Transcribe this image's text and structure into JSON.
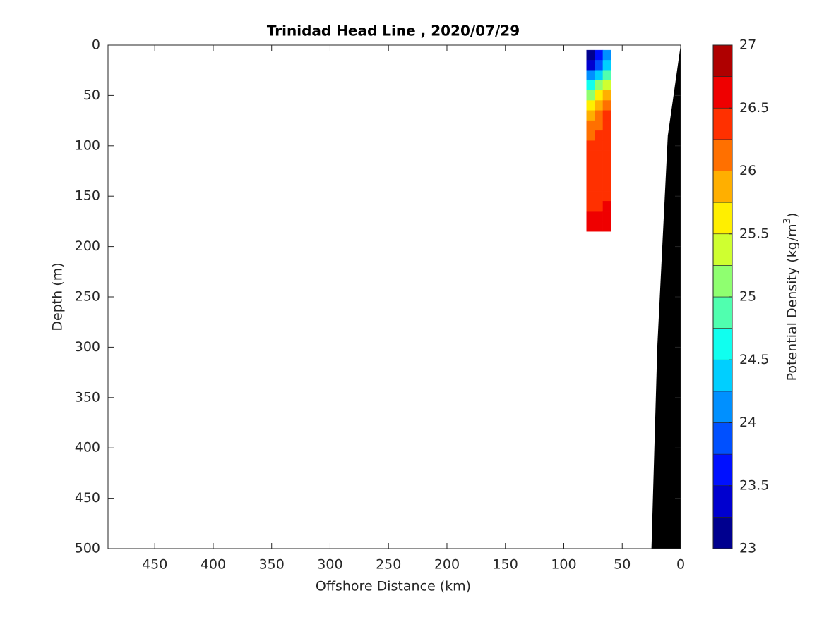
{
  "chart_data": {
    "type": "contour",
    "title": "Trinidad Head Line , 2020/07/29",
    "x_label": "Offshore Distance (km)",
    "y_label": "Depth (m)",
    "colorbar_label": [
      "Potential Density (kg/m",
      "3",
      ")"
    ],
    "xlim": [
      490,
      0
    ],
    "xticks": [
      450,
      400,
      350,
      300,
      250,
      200,
      150,
      100,
      50,
      0
    ],
    "ylim": [
      0,
      500
    ],
    "yticks": [
      0,
      50,
      100,
      150,
      200,
      250,
      300,
      350,
      400,
      450,
      500
    ],
    "clim": [
      23,
      27
    ],
    "cticks": [
      23,
      23.5,
      24,
      24.5,
      25,
      25.5,
      26,
      26.5,
      27
    ],
    "levels": [
      23,
      23.25,
      23.5,
      23.75,
      24,
      24.25,
      24.5,
      24.75,
      25,
      25.25,
      25.5,
      25.75,
      26,
      26.25,
      26.5,
      26.75,
      27
    ],
    "colors": [
      "#00008f",
      "#0000cf",
      "#0010ff",
      "#0050ff",
      "#0090ff",
      "#00cfff",
      "#10ffef",
      "#50ffaf",
      "#8fff70",
      "#cfff30",
      "#ffef00",
      "#ffaf00",
      "#ff7000",
      "#ff3000",
      "#ef0000",
      "#af0000"
    ],
    "x": [
      77,
      70,
      63
    ],
    "depth": [
      10,
      20,
      30,
      40,
      50,
      60,
      70,
      80,
      90,
      100,
      110,
      120,
      130,
      140,
      150,
      160,
      170,
      180
    ],
    "values": [
      [
        23.2,
        23.6,
        24.2
      ],
      [
        23.4,
        23.9,
        24.4
      ],
      [
        24.0,
        24.4,
        24.8
      ],
      [
        24.7,
        25.0,
        25.3
      ],
      [
        25.2,
        25.5,
        25.8
      ],
      [
        25.7,
        25.9,
        26.1
      ],
      [
        25.95,
        26.1,
        26.25
      ],
      [
        26.15,
        26.2,
        26.3
      ],
      [
        26.2,
        26.25,
        26.3
      ],
      [
        26.25,
        26.3,
        26.35
      ],
      [
        26.3,
        26.35,
        26.4
      ],
      [
        26.4,
        26.4,
        26.4
      ],
      [
        26.4,
        26.4,
        26.4
      ],
      [
        26.4,
        26.4,
        26.4
      ],
      [
        26.4,
        26.4,
        26.45
      ],
      [
        26.45,
        26.45,
        26.5
      ],
      [
        26.5,
        26.5,
        26.55
      ],
      [
        26.55,
        26.55,
        26.6
      ]
    ],
    "bathymetry": {
      "color": "#000000",
      "x": [
        0,
        11,
        20,
        25
      ],
      "y": [
        0,
        90,
        300,
        500
      ]
    }
  }
}
